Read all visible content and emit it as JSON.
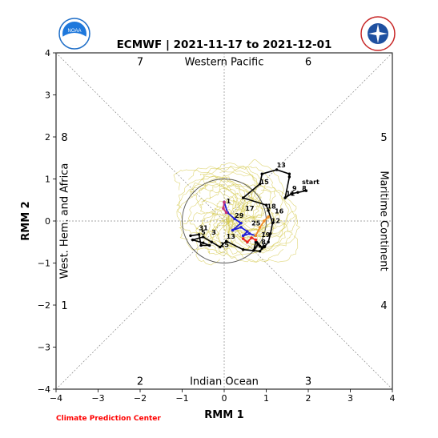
{
  "header": {
    "title": "ECMWF | 2021-11-17 to 2021-12-01",
    "footer_credit": "Climate Prediction Center"
  },
  "logos": {
    "left": {
      "icon": "noaa-logo",
      "text": "NOAA"
    },
    "right": {
      "icon": "nws-logo",
      "text": "NATIONAL WEATHER SERVICE"
    }
  },
  "colors": {
    "observed": "#000000",
    "ensemble": "#d4c84a",
    "forecast_blue": "#1f1fd6",
    "forecast_magenta": "#c8327a",
    "forecast_red": "#e8231e",
    "forecast_orange": "#f08c28",
    "credit": "#ff0000"
  },
  "chart_data": {
    "type": "line",
    "title": "ECMWF | 2021-11-17 to 2021-12-01",
    "xlabel": "RMM 1",
    "ylabel": "RMM 2",
    "xlim": [
      -4,
      4
    ],
    "ylim": [
      -4,
      4
    ],
    "xticks": [
      -4,
      -3,
      -2,
      -1,
      0,
      1,
      2,
      3,
      4
    ],
    "yticks": [
      -4,
      -3,
      -2,
      -1,
      0,
      1,
      2,
      3,
      4
    ],
    "unit_circle_radius": 1,
    "phase_numbers": [
      {
        "label": "7",
        "x": -2.0,
        "y": 3.8
      },
      {
        "label": "6",
        "x": 2.0,
        "y": 3.8
      },
      {
        "label": "8",
        "x": -3.8,
        "y": 2.0
      },
      {
        "label": "5",
        "x": 3.8,
        "y": 2.0
      },
      {
        "label": "1",
        "x": -3.8,
        "y": -2.0
      },
      {
        "label": "4",
        "x": 3.8,
        "y": -2.0
      },
      {
        "label": "2",
        "x": -2.0,
        "y": -3.8
      },
      {
        "label": "3",
        "x": 2.0,
        "y": -3.8
      }
    ],
    "region_labels": {
      "top": "Western Pacific",
      "bottom": "Indian Ocean",
      "left": "West. Hem. and Africa",
      "right": "Maritime Continent"
    },
    "observed": {
      "name": "observed",
      "x": [
        1.95,
        1.75,
        1.6,
        1.45,
        1.55,
        1.55,
        1.25,
        0.9,
        0.85,
        0.45,
        1.0,
        1.05,
        1.15,
        1.1,
        1.05,
        0.95,
        0.85,
        0.75,
        0.7,
        0.8,
        0.75,
        0.9,
        0.85,
        0.45,
        0.05,
        -0.1,
        -0.3,
        -0.5,
        -0.75,
        -0.5,
        -0.35,
        -0.55,
        -0.6,
        -0.8
      ],
      "y": [
        0.72,
        0.68,
        0.65,
        0.55,
        1.05,
        1.12,
        1.22,
        1.12,
        0.88,
        0.55,
        0.38,
        0.25,
        -0.05,
        -0.3,
        -0.5,
        -0.62,
        -0.6,
        -0.5,
        -0.7,
        -0.55,
        -0.45,
        -0.65,
        -0.72,
        -0.68,
        -0.48,
        -0.62,
        -0.5,
        -0.38,
        -0.45,
        -0.52,
        -0.58,
        -0.58,
        -0.32,
        -0.35
      ],
      "labels": [
        {
          "label": "start",
          "x": 1.85,
          "y": 0.88
        },
        {
          "label": "8",
          "x": 1.85,
          "y": 0.72
        },
        {
          "label": "9",
          "x": 1.62,
          "y": 0.72
        },
        {
          "label": "11",
          "x": 1.47,
          "y": 0.6
        },
        {
          "label": "13",
          "x": 1.25,
          "y": 1.28
        },
        {
          "label": "15",
          "x": 0.85,
          "y": 0.88
        },
        {
          "label": "17",
          "x": 0.5,
          "y": 0.25
        },
        {
          "label": "16",
          "x": 1.2,
          "y": 0.18
        },
        {
          "label": "18",
          "x": 1.02,
          "y": 0.3
        },
        {
          "label": "12",
          "x": 1.12,
          "y": -0.05
        },
        {
          "label": "19",
          "x": 0.88,
          "y": -0.38
        },
        {
          "label": "8",
          "x": 0.88,
          "y": -0.55
        },
        {
          "label": "6",
          "x": 0.9,
          "y": -0.65
        },
        {
          "label": "25",
          "x": 0.65,
          "y": -0.1
        },
        {
          "label": "29",
          "x": 0.25,
          "y": 0.08
        },
        {
          "label": "1",
          "x": 0.05,
          "y": 0.42
        },
        {
          "label": "3",
          "x": -0.3,
          "y": -0.32
        },
        {
          "label": "31",
          "x": -0.6,
          "y": -0.22
        },
        {
          "label": "5",
          "x": -0.55,
          "y": -0.32
        },
        {
          "label": "13",
          "x": 0.05,
          "y": -0.42
        },
        {
          "label": "15",
          "x": -0.1,
          "y": -0.62
        }
      ]
    },
    "forecast_mean": [
      {
        "name": "forecast-blue",
        "x": [
          0.0,
          0.08,
          0.25,
          0.4,
          0.2,
          0.4,
          0.55,
          0.45,
          0.6,
          0.75
        ],
        "y": [
          0.45,
          0.2,
          0.05,
          -0.05,
          -0.22,
          -0.15,
          -0.25,
          -0.35,
          -0.3,
          -0.35
        ]
      },
      {
        "name": "forecast-magenta",
        "x": [
          0.0,
          -0.02,
          0.05
        ],
        "y": [
          0.45,
          0.3,
          0.2
        ]
      },
      {
        "name": "forecast-red",
        "x": [
          0.45,
          0.55,
          0.65,
          0.75
        ],
        "y": [
          -0.42,
          -0.5,
          -0.4,
          -0.45
        ]
      },
      {
        "name": "forecast-orange",
        "x": [
          0.75,
          0.85,
          0.95,
          1.05
        ],
        "y": [
          -0.35,
          -0.15,
          0.0,
          0.1
        ]
      }
    ],
    "ensemble_note": "ensemble member tracks"
  }
}
